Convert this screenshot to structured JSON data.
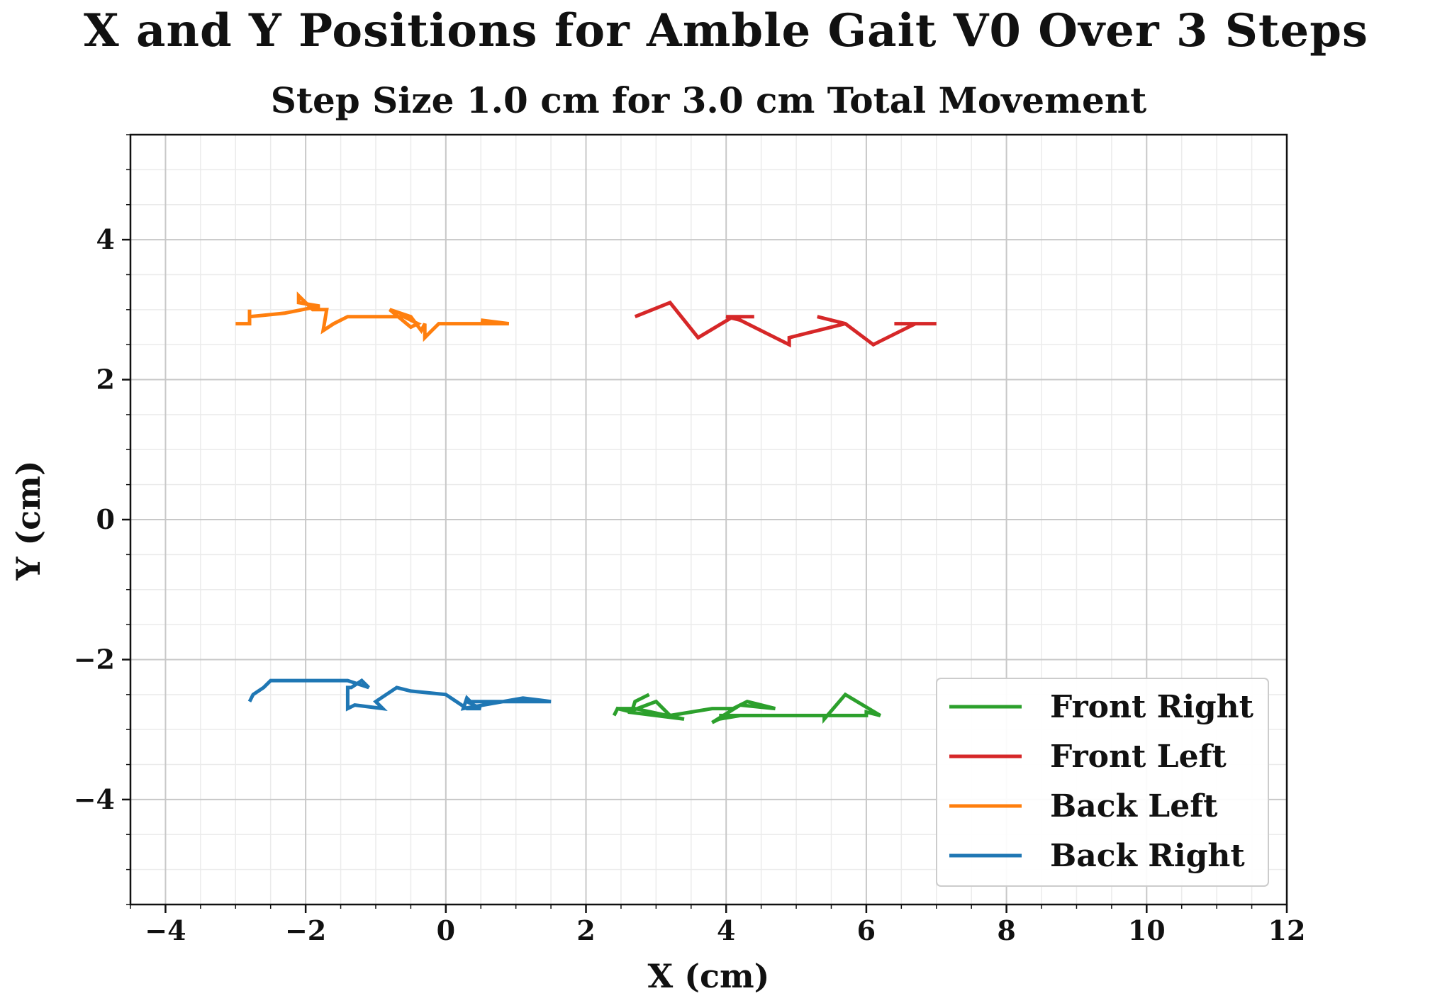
{
  "chart_data": {
    "type": "line",
    "title": "X and Y Positions for Amble Gait V0 Over 3 Steps",
    "subtitle": "Step Size 1.0 cm for 3.0 cm Total Movement",
    "xlabel": "X (cm)",
    "ylabel": "Y (cm)",
    "xlim": [
      -4.5,
      12
    ],
    "ylim": [
      -5.5,
      5.5
    ],
    "xticks": [
      -4,
      -2,
      0,
      2,
      4,
      6,
      8,
      10,
      12
    ],
    "xtick_labels": [
      "−4",
      "−2",
      "0",
      "2",
      "4",
      "6",
      "8",
      "10",
      "12"
    ],
    "yticks": [
      -4,
      -2,
      0,
      2,
      4
    ],
    "ytick_labels": [
      "−4",
      "−2",
      "0",
      "2",
      "4"
    ],
    "grid": true,
    "minor_grid": true,
    "legend_position": "bottom-right",
    "series": [
      {
        "name": "Front Right",
        "color": "#2ca02c",
        "points": [
          [
            2.9,
            -2.5
          ],
          [
            2.7,
            -2.6
          ],
          [
            2.65,
            -2.75
          ],
          [
            2.45,
            -2.7
          ],
          [
            2.4,
            -2.8
          ],
          [
            2.45,
            -2.7
          ],
          [
            2.7,
            -2.7
          ],
          [
            3.4,
            -2.85
          ],
          [
            2.6,
            -2.75
          ],
          [
            3.0,
            -2.6
          ],
          [
            3.2,
            -2.8
          ],
          [
            3.8,
            -2.7
          ],
          [
            4.1,
            -2.7
          ],
          [
            4.3,
            -2.6
          ],
          [
            4.5,
            -2.65
          ],
          [
            4.7,
            -2.7
          ],
          [
            4.2,
            -2.65
          ],
          [
            3.8,
            -2.9
          ],
          [
            3.9,
            -2.85
          ],
          [
            4.2,
            -2.8
          ],
          [
            5.4,
            -2.8
          ],
          [
            5.4,
            -2.85
          ],
          [
            5.7,
            -2.5
          ],
          [
            6.2,
            -2.8
          ],
          [
            6.0,
            -2.75
          ],
          [
            6.0,
            -2.8
          ],
          [
            3.9,
            -2.8
          ]
        ]
      },
      {
        "name": "Front Left",
        "color": "#d62728",
        "points": [
          [
            2.7,
            2.9
          ],
          [
            3.2,
            3.1
          ],
          [
            3.6,
            2.6
          ],
          [
            4.1,
            2.9
          ],
          [
            4.4,
            2.9
          ],
          [
            4.0,
            2.9
          ],
          [
            4.2,
            2.85
          ],
          [
            4.9,
            2.5
          ],
          [
            4.9,
            2.6
          ],
          [
            5.3,
            2.7
          ],
          [
            5.7,
            2.8
          ],
          [
            5.3,
            2.9
          ],
          [
            5.7,
            2.8
          ],
          [
            6.1,
            2.5
          ],
          [
            6.2,
            2.55
          ],
          [
            6.7,
            2.8
          ],
          [
            7.0,
            2.8
          ],
          [
            6.4,
            2.8
          ]
        ]
      },
      {
        "name": "Back Left",
        "color": "#ff7f0e",
        "points": [
          [
            -3.0,
            2.8
          ],
          [
            -2.8,
            2.8
          ],
          [
            -2.8,
            3.0
          ],
          [
            -2.8,
            2.9
          ],
          [
            -2.3,
            2.95
          ],
          [
            -1.8,
            3.05
          ],
          [
            -2.1,
            3.1
          ],
          [
            -2.1,
            3.2
          ],
          [
            -1.9,
            3.0
          ],
          [
            -1.7,
            3.0
          ],
          [
            -1.75,
            2.7
          ],
          [
            -1.6,
            2.8
          ],
          [
            -1.4,
            2.9
          ],
          [
            -0.5,
            2.9
          ],
          [
            -0.6,
            2.9
          ],
          [
            -0.4,
            2.8
          ],
          [
            -0.5,
            2.75
          ],
          [
            -0.8,
            3.0
          ],
          [
            -0.5,
            2.9
          ],
          [
            -0.35,
            2.7
          ],
          [
            -0.3,
            2.8
          ],
          [
            -0.3,
            2.6
          ],
          [
            -0.2,
            2.7
          ],
          [
            -0.1,
            2.8
          ],
          [
            0.9,
            2.8
          ],
          [
            0.5,
            2.85
          ]
        ]
      },
      {
        "name": "Back Right",
        "color": "#1f77b4",
        "points": [
          [
            -2.8,
            -2.6
          ],
          [
            -2.75,
            -2.5
          ],
          [
            -2.6,
            -2.4
          ],
          [
            -2.5,
            -2.3
          ],
          [
            -2.3,
            -2.3
          ],
          [
            -1.4,
            -2.3
          ],
          [
            -1.1,
            -2.4
          ],
          [
            -1.2,
            -2.3
          ],
          [
            -1.35,
            -2.4
          ],
          [
            -1.4,
            -2.4
          ],
          [
            -1.4,
            -2.7
          ],
          [
            -1.3,
            -2.65
          ],
          [
            -0.9,
            -2.7
          ],
          [
            -1.0,
            -2.6
          ],
          [
            -0.7,
            -2.4
          ],
          [
            -0.5,
            -2.45
          ],
          [
            0.0,
            -2.5
          ],
          [
            0.3,
            -2.7
          ],
          [
            0.5,
            -2.7
          ],
          [
            0.3,
            -2.6
          ],
          [
            0.4,
            -2.6
          ],
          [
            0.6,
            -2.6
          ],
          [
            1.5,
            -2.6
          ],
          [
            1.1,
            -2.55
          ],
          [
            0.25,
            -2.7
          ],
          [
            0.3,
            -2.55
          ],
          [
            0.35,
            -2.6
          ]
        ]
      }
    ]
  }
}
